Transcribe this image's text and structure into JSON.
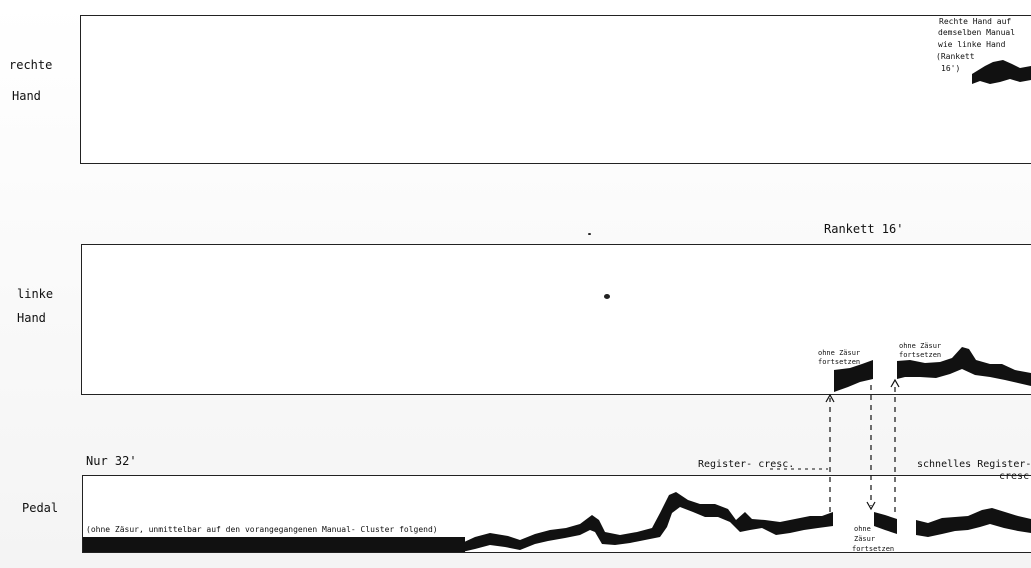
{
  "staff_labels": {
    "right_hand": [
      "rechte",
      "Hand"
    ],
    "left_hand": [
      "linke",
      "Hand"
    ],
    "pedal": "Pedal"
  },
  "annotations": {
    "right_hand_note": [
      "Rechte Hand auf",
      "demselben Manual",
      "wie linke Hand",
      "(Rankett",
      "16')"
    ],
    "rankett": "Rankett 16'",
    "nur32": "Nur 32'",
    "register_cresc": "Register- cresc.",
    "schnelles_register": [
      "schnelles Register-",
      "cresc."
    ],
    "pedal_note": "(ohne Zäsur, unmittelbar auf den vorangegangenen Manual- Cluster folgend)",
    "ohne_zasur_1": [
      "ohne Zäsur",
      "fortsetzen"
    ],
    "ohne_zasur_2": [
      "ohne Zäsur",
      "fortsetzen"
    ],
    "ohne_zasur_3": [
      "ohne",
      "Zäsur",
      "fortsetzen"
    ]
  }
}
